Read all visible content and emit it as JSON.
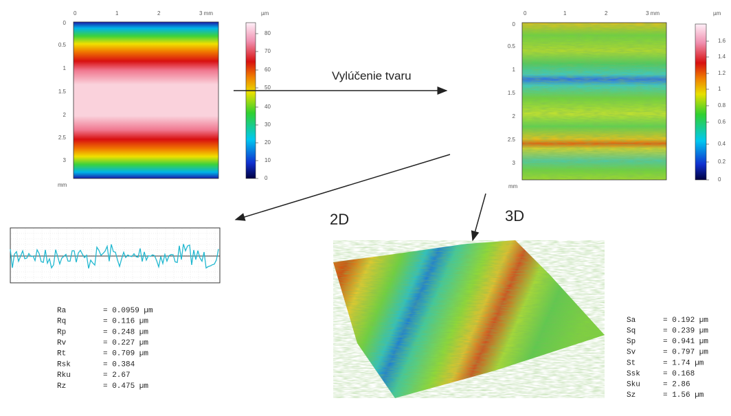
{
  "left_map": {
    "x_ticks": [
      "0",
      "1",
      "2",
      "3 mm"
    ],
    "y_ticks": [
      "0",
      "0.5",
      "1",
      "1.5",
      "2",
      "2.5",
      "3"
    ],
    "y_unit": "mm",
    "colorbar": {
      "unit": "µm",
      "ticks": [
        "0",
        "10",
        "20",
        "30",
        "40",
        "50",
        "60",
        "70",
        "80"
      ]
    }
  },
  "right_map": {
    "x_ticks": [
      "0",
      "1",
      "2",
      "3 mm"
    ],
    "y_ticks": [
      "0",
      "0.5",
      "1",
      "1.5",
      "2",
      "2.5",
      "3"
    ],
    "y_unit": "mm",
    "colorbar": {
      "unit": "µm",
      "ticks": [
        "0",
        "0.2",
        "0.4",
        "0.6",
        "0.8",
        "1",
        "1.2",
        "1.4",
        "1.6"
      ]
    }
  },
  "arrow_label": "Vylúčenie tvaru",
  "label_2d": "2D",
  "label_3d": "3D",
  "roughness_2d": [
    [
      "Ra",
      "= 0.0959 µm"
    ],
    [
      "Rq",
      "= 0.116 µm"
    ],
    [
      "Rp",
      "= 0.248 µm"
    ],
    [
      "Rv",
      "= 0.227 µm"
    ],
    [
      "Rt",
      "= 0.709 µm"
    ],
    [
      "Rsk",
      "= 0.384"
    ],
    [
      "Rku",
      "= 2.67"
    ],
    [
      "Rz",
      "= 0.475 µm"
    ]
  ],
  "roughness_3d": [
    [
      "Sa",
      "= 0.192 µm"
    ],
    [
      "Sq",
      "= 0.239 µm"
    ],
    [
      "Sp",
      "= 0.941 µm"
    ],
    [
      "Sv",
      "= 0.797 µm"
    ],
    [
      "St",
      "= 1.74 µm"
    ],
    [
      "Ssk",
      "= 0.168"
    ],
    [
      "Sku",
      "= 2.86"
    ],
    [
      "Sz",
      "= 1.56 µm"
    ]
  ]
}
